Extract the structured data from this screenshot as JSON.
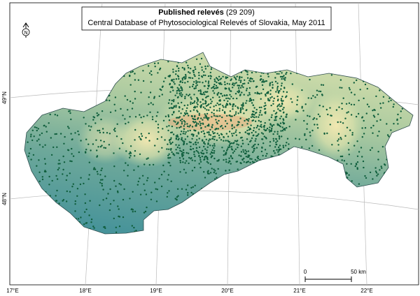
{
  "title": {
    "label": "Published relevés",
    "count": "(29 209)"
  },
  "subtitle": "Central Database of Phytosociological Relevés of Slovakia, May 2011",
  "north_arrow": "N",
  "longitude_labels": [
    "17°E",
    "18°E",
    "19°E",
    "20°E",
    "21°E",
    "22°E"
  ],
  "latitude_labels": [
    "49°N",
    "48°N"
  ],
  "scale_bar": {
    "start": "0",
    "end": "50 km"
  }
}
